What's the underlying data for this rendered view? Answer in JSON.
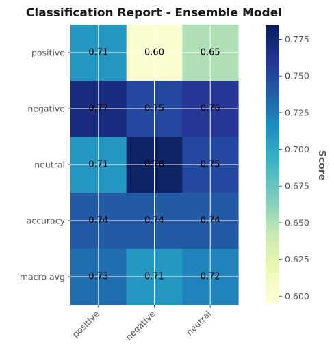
{
  "chart_data": {
    "type": "heatmap",
    "title": "Classification Report - Ensemble Model",
    "x_categories": [
      "positive",
      "negative",
      "neutral"
    ],
    "y_categories": [
      "positive",
      "negative",
      "neutral",
      "accuracy",
      "macro avg"
    ],
    "values": [
      [
        0.71,
        0.6,
        0.65
      ],
      [
        0.77,
        0.75,
        0.76
      ],
      [
        0.71,
        0.78,
        0.75
      ],
      [
        0.74,
        0.74,
        0.74
      ],
      [
        0.73,
        0.71,
        0.72
      ]
    ],
    "colorbar": {
      "label": "Score",
      "range": [
        0.595,
        0.785
      ],
      "ticks": [
        "0.600",
        "0.625",
        "0.650",
        "0.675",
        "0.700",
        "0.725",
        "0.750",
        "0.775"
      ],
      "colormap": "YlGnBu"
    },
    "grid": true
  }
}
